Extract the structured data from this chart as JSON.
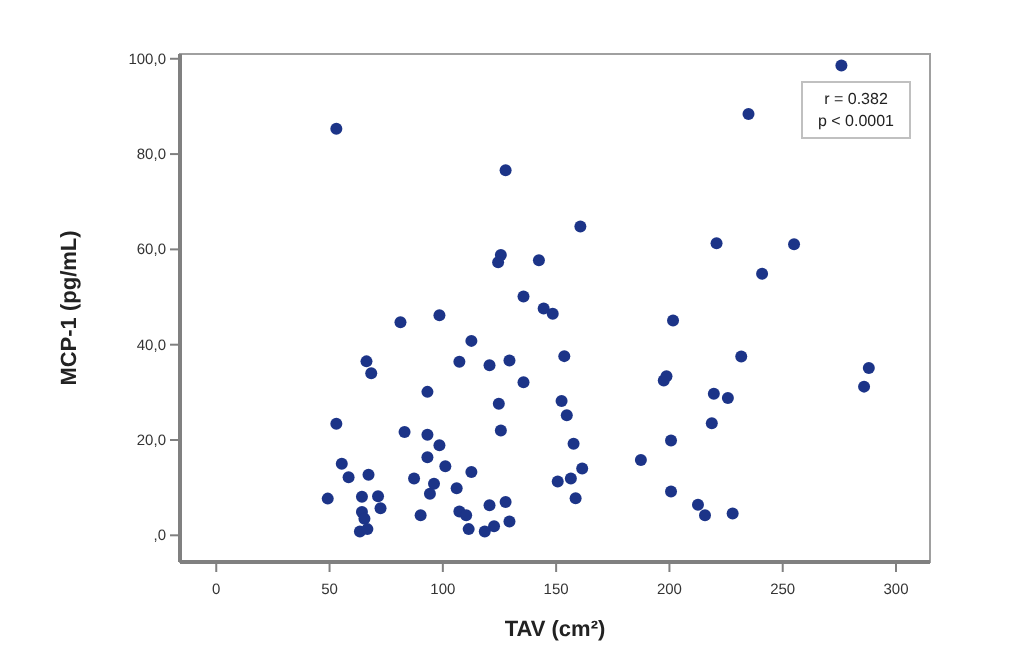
{
  "chart_data": {
    "type": "scatter",
    "xlabel": "TAV (cm²)",
    "ylabel": "MCP-1 (pg/mL)",
    "annotations": [
      "r = 0.382\np < 0.0001"
    ],
    "marker": "circle",
    "xlim": [
      -16,
      315
    ],
    "xticks": [
      0,
      50,
      100,
      150,
      200,
      250,
      300
    ],
    "ylim": [
      -5.6,
      101
    ],
    "yticks": [
      {
        "value": 0,
        "label": ",0"
      },
      {
        "value": 20,
        "label": "20,0"
      },
      {
        "value": 40,
        "label": "40,0"
      },
      {
        "value": 60,
        "label": "60,0"
      },
      {
        "value": 80,
        "label": "80,0"
      },
      {
        "value": 100,
        "label": "100,0"
      }
    ],
    "series": [
      {
        "color": "#1c3488",
        "x": [
          53,
          81.3,
          98.5,
          53,
          55.4,
          58.4,
          49.2,
          66.3,
          68.4,
          67.2,
          64.3,
          64.3,
          65.4,
          63.4,
          66.7,
          71.4,
          72.5,
          112.6,
          107.3,
          93.2,
          83.1,
          93.2,
          98.5,
          93.2,
          101.1,
          112.6,
          87.3,
          96.1,
          94.3,
          106.1,
          90.2,
          107.3,
          110.3,
          111.4,
          144.5,
          148.5,
          201.6,
          120.6,
          129.4,
          153.6,
          135.6,
          124.7,
          125.6,
          152.4,
          154.7,
          157.7,
          161.5,
          150.7,
          156.5,
          158.6,
          120.6,
          127.7,
          122.6,
          118.5,
          129.4,
          197.5,
          198.7,
          231.7,
          219.6,
          225.8,
          218.7,
          200.7,
          187.4,
          200.7,
          212.6,
          215.7,
          227.9,
          288,
          285.9,
          275.9,
          234.9,
          127.7,
          160.7,
          220.8,
          255,
          240.9,
          125.6,
          124.4,
          142.4,
          135.6
        ],
        "values": [
          85.3,
          44.7,
          46.2,
          23.4,
          15,
          12.2,
          7.7,
          36.5,
          34,
          12.7,
          8.1,
          4.9,
          3.5,
          0.8,
          1.3,
          8.2,
          5.7,
          40.8,
          36.4,
          30.1,
          21.7,
          21.1,
          18.9,
          16.4,
          14.5,
          13.3,
          11.9,
          10.8,
          8.7,
          9.9,
          4.2,
          5,
          4.2,
          1.3,
          47.6,
          46.5,
          45.1,
          35.7,
          36.7,
          37.6,
          32.1,
          27.6,
          22,
          28.2,
          25.2,
          19.2,
          14,
          11.3,
          11.9,
          7.8,
          6.3,
          7,
          1.9,
          0.8,
          2.9,
          32.5,
          33.4,
          37.5,
          29.7,
          28.8,
          23.5,
          19.9,
          15.8,
          9.2,
          6.4,
          4.2,
          4.6,
          35.1,
          31.2,
          98.6,
          88.4,
          76.6,
          64.8,
          61.3,
          61.1,
          54.9,
          58.8,
          57.3,
          57.7,
          50.1
        ]
      }
    ]
  }
}
